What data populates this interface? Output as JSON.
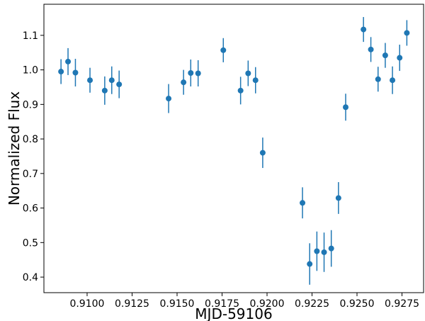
{
  "chart_data": {
    "type": "scatter",
    "title": "",
    "xlabel": "MJD-59106",
    "ylabel": "Normalized Flux",
    "xlim": [
      0.9076,
      0.9287
    ],
    "ylim": [
      0.355,
      1.19
    ],
    "grid": false,
    "legend": "none",
    "x_ticks": [
      0.91,
      0.9125,
      0.915,
      0.9175,
      0.92,
      0.9225,
      0.925,
      0.9275
    ],
    "x_tick_labels": [
      "0.9100",
      "0.9125",
      "0.9150",
      "0.9175",
      "0.9200",
      "0.9225",
      "0.9250",
      "0.9275"
    ],
    "y_ticks": [
      0.4,
      0.5,
      0.6,
      0.7,
      0.8,
      0.9,
      1.0,
      1.1
    ],
    "y_tick_labels": [
      "0.4",
      "0.5",
      "0.6",
      "0.7",
      "0.8",
      "0.9",
      "1.0",
      "1.1"
    ],
    "colors": {
      "marker": "#1f77b4",
      "errorbar": "#1f77b4",
      "axes": "#000000"
    },
    "series": [
      {
        "x": [
          0.90855,
          0.90894,
          0.90935,
          0.91016,
          0.91098,
          0.91137,
          0.91178,
          0.91453,
          0.91536,
          0.91576,
          0.91617,
          0.91757,
          0.91853,
          0.91895,
          0.91936,
          0.91976,
          0.92197,
          0.92237,
          0.92277,
          0.92317,
          0.92357,
          0.92397,
          0.92437,
          0.92536,
          0.92577,
          0.92617,
          0.92657,
          0.92697,
          0.92737,
          0.92777
        ],
        "y": [
          0.995,
          1.024,
          0.992,
          0.97,
          0.94,
          0.97,
          0.958,
          0.917,
          0.964,
          0.991,
          0.99,
          1.057,
          0.94,
          0.99,
          0.97,
          0.76,
          0.615,
          0.438,
          0.475,
          0.472,
          0.483,
          0.629,
          0.892,
          1.117,
          1.059,
          0.973,
          1.042,
          0.97,
          1.035,
          1.107
        ],
        "yerr": [
          0.036,
          0.039,
          0.04,
          0.036,
          0.041,
          0.04,
          0.04,
          0.042,
          0.036,
          0.039,
          0.038,
          0.035,
          0.04,
          0.037,
          0.038,
          0.044,
          0.045,
          0.06,
          0.057,
          0.057,
          0.053,
          0.046,
          0.039,
          0.036,
          0.036,
          0.036,
          0.036,
          0.04,
          0.038,
          0.037
        ]
      }
    ]
  }
}
